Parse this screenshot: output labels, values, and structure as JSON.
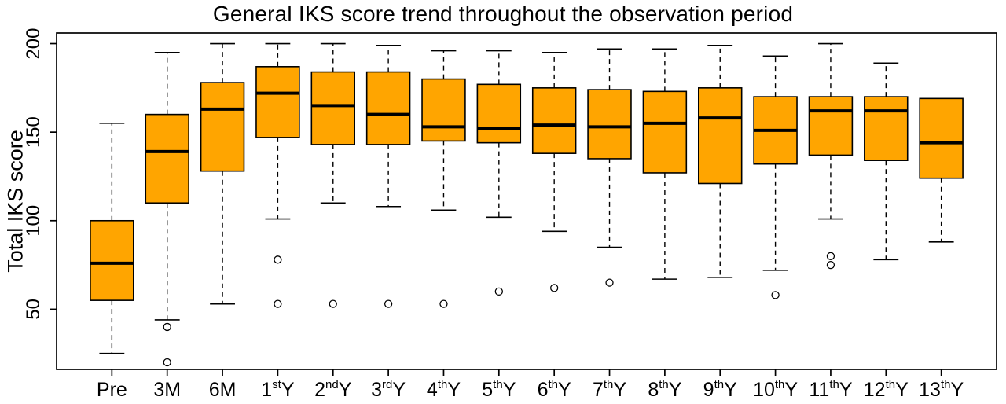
{
  "title": "General IKS score trend throughout the observation period",
  "chart_data": {
    "type": "boxplot",
    "title": "General IKS score trend throughout the observation period",
    "xlabel": "",
    "ylabel": "Total IKS score",
    "yticks": [
      50,
      100,
      150,
      200
    ],
    "ylim": [
      16,
      206
    ],
    "grid": false,
    "legend": "none",
    "box_color": "#FFA500",
    "box_border_color": "#000000",
    "median_color": "#000000",
    "categories": [
      {
        "base": "Pre",
        "sup": "",
        "tail": ""
      },
      {
        "base": "3M",
        "sup": "",
        "tail": ""
      },
      {
        "base": "6M",
        "sup": "",
        "tail": ""
      },
      {
        "base": "1",
        "sup": "st",
        "tail": "Y"
      },
      {
        "base": "2",
        "sup": "nd",
        "tail": "Y"
      },
      {
        "base": "3",
        "sup": "rd",
        "tail": "Y"
      },
      {
        "base": "4",
        "sup": "th",
        "tail": "Y"
      },
      {
        "base": "5",
        "sup": "th",
        "tail": "Y"
      },
      {
        "base": "6",
        "sup": "th",
        "tail": "Y"
      },
      {
        "base": "7",
        "sup": "th",
        "tail": "Y"
      },
      {
        "base": "8",
        "sup": "th",
        "tail": "Y"
      },
      {
        "base": "9",
        "sup": "th",
        "tail": "Y"
      },
      {
        "base": "10",
        "sup": "th",
        "tail": "Y"
      },
      {
        "base": "11",
        "sup": "th",
        "tail": "Y"
      },
      {
        "base": "12",
        "sup": "th",
        "tail": "Y"
      },
      {
        "base": "13",
        "sup": "th",
        "tail": "Y"
      }
    ],
    "boxes": [
      {
        "name": "Pre",
        "min": 25,
        "q1": 55,
        "median": 76,
        "q3": 100,
        "max": 155,
        "outliers": []
      },
      {
        "name": "3M",
        "min": 44,
        "q1": 110,
        "median": 139,
        "q3": 160,
        "max": 195,
        "outliers": [
          40,
          20
        ]
      },
      {
        "name": "6M",
        "min": 53,
        "q1": 128,
        "median": 163,
        "q3": 178,
        "max": 200,
        "outliers": []
      },
      {
        "name": "1stY",
        "min": 101,
        "q1": 147,
        "median": 172,
        "q3": 187,
        "max": 200,
        "outliers": [
          78,
          53
        ]
      },
      {
        "name": "2ndY",
        "min": 110,
        "q1": 143,
        "median": 165,
        "q3": 184,
        "max": 200,
        "outliers": [
          53
        ]
      },
      {
        "name": "3rdY",
        "min": 108,
        "q1": 143,
        "median": 160,
        "q3": 184,
        "max": 199,
        "outliers": [
          53
        ]
      },
      {
        "name": "4thY",
        "min": 106,
        "q1": 145,
        "median": 153,
        "q3": 180,
        "max": 196,
        "outliers": [
          53
        ]
      },
      {
        "name": "5thY",
        "min": 102,
        "q1": 144,
        "median": 152,
        "q3": 177,
        "max": 196,
        "outliers": [
          60
        ]
      },
      {
        "name": "6thY",
        "min": 94,
        "q1": 138,
        "median": 154,
        "q3": 175,
        "max": 195,
        "outliers": [
          62
        ]
      },
      {
        "name": "7thY",
        "min": 85,
        "q1": 135,
        "median": 153,
        "q3": 174,
        "max": 197,
        "outliers": [
          65
        ]
      },
      {
        "name": "8thY",
        "min": 67,
        "q1": 127,
        "median": 155,
        "q3": 173,
        "max": 197,
        "outliers": []
      },
      {
        "name": "9thY",
        "min": 68,
        "q1": 121,
        "median": 158,
        "q3": 175,
        "max": 199,
        "outliers": []
      },
      {
        "name": "10thY",
        "min": 72,
        "q1": 132,
        "median": 151,
        "q3": 170,
        "max": 193,
        "outliers": [
          58
        ]
      },
      {
        "name": "11thY",
        "min": 101,
        "q1": 137,
        "median": 162,
        "q3": 170,
        "max": 200,
        "outliers": [
          80,
          75
        ]
      },
      {
        "name": "12thY",
        "min": 78,
        "q1": 134,
        "median": 162,
        "q3": 170,
        "max": 189,
        "outliers": []
      },
      {
        "name": "13thY",
        "min": 88,
        "q1": 124,
        "median": 144,
        "q3": 169,
        "max": 169,
        "outliers": []
      }
    ]
  }
}
